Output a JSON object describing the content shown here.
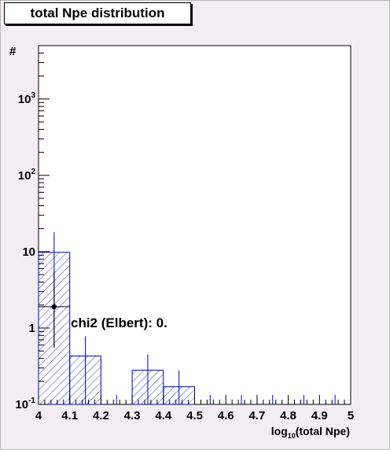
{
  "title": "total Npe distribution",
  "chart_data": {
    "type": "histogram",
    "title": "total Npe distribution",
    "xlabel": "log10(total Npe)",
    "xlabel_base": "log",
    "xlabel_sub": "10",
    "xlabel_rest": "(total Npe)",
    "ylabel": "#",
    "xlim": [
      4,
      5
    ],
    "ylim": [
      0.1,
      5000
    ],
    "yscale": "log",
    "x_ticks": [
      "4",
      "4.1",
      "4.2",
      "4.3",
      "4.4",
      "4.5",
      "4.6",
      "4.7",
      "4.8",
      "4.9",
      "5"
    ],
    "y_ticks": [
      {
        "value": 0.1,
        "base": "10",
        "exp": "-1"
      },
      {
        "value": 1,
        "base": "1",
        "exp": ""
      },
      {
        "value": 10,
        "base": "10",
        "exp": ""
      },
      {
        "value": 100,
        "base": "10",
        "exp": "2"
      },
      {
        "value": 1000,
        "base": "10",
        "exp": "3"
      }
    ],
    "bin_width": 0.1,
    "bins": [
      {
        "x": 4.05,
        "value": 9.8,
        "err_low": 0.55,
        "err_high": 18
      },
      {
        "x": 4.15,
        "value": 0.43,
        "err_low": 0.1,
        "err_high": 0.78
      },
      {
        "x": 4.25,
        "value": 0,
        "err_low": 0,
        "err_high": 0
      },
      {
        "x": 4.35,
        "value": 0.28,
        "err_low": 0.1,
        "err_high": 0.45
      },
      {
        "x": 4.45,
        "value": 0.17,
        "err_low": 0.1,
        "err_high": 0.28
      },
      {
        "x": 4.55,
        "value": 0,
        "err_low": 0,
        "err_high": 0
      },
      {
        "x": 4.65,
        "value": 0,
        "err_low": 0,
        "err_high": 0
      },
      {
        "x": 4.75,
        "value": 0,
        "err_low": 0,
        "err_high": 0
      },
      {
        "x": 4.85,
        "value": 0,
        "err_low": 0,
        "err_high": 0
      },
      {
        "x": 4.95,
        "value": 0,
        "err_low": 0,
        "err_high": 0
      }
    ],
    "reference_point": {
      "x": 4.05,
      "y": 1.9,
      "x_err": 0.05,
      "err_low": 0.55,
      "err_high": 5.5
    },
    "annotation": "chi2 (Elbert): 0.",
    "colors": {
      "histogram": "#0000cc",
      "point": "#000000",
      "background": "#f3eef3"
    }
  }
}
